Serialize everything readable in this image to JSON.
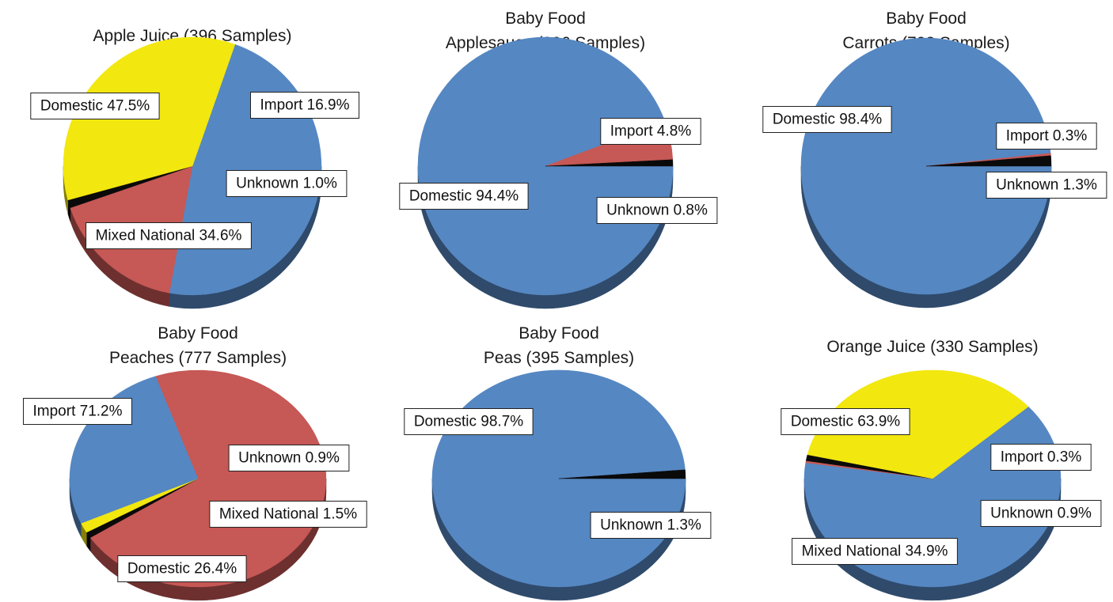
{
  "colors": {
    "Domestic": "#5587C2",
    "Import": "#C65855",
    "Mixed National": "#F2E70F",
    "Unknown": "#0a0a0a"
  },
  "chart_data": [
    {
      "type": "pie",
      "title": [
        "Apple Juice (396 Samples)"
      ],
      "slices": [
        {
          "name": "Domestic",
          "value": 47.5,
          "label": "Domestic 47.5%"
        },
        {
          "name": "Import",
          "value": 16.9,
          "label": "Import 16.9%"
        },
        {
          "name": "Unknown",
          "value": 1.0,
          "label": "Unknown 1.0%"
        },
        {
          "name": "Mixed National",
          "value": 34.6,
          "label": "Mixed National 34.6%"
        }
      ]
    },
    {
      "type": "pie",
      "title": [
        "Baby Food",
        "Applesauce (396 Samples)"
      ],
      "slices": [
        {
          "name": "Domestic",
          "value": 94.4,
          "label": "Domestic 94.4%"
        },
        {
          "name": "Import",
          "value": 4.8,
          "label": "Import 4.8%"
        },
        {
          "name": "Unknown",
          "value": 0.8,
          "label": "Unknown 0.8%"
        }
      ]
    },
    {
      "type": "pie",
      "title": [
        "Baby Food",
        "Carrots (792 Samples)"
      ],
      "slices": [
        {
          "name": "Domestic",
          "value": 98.4,
          "label": "Domestic 98.4%"
        },
        {
          "name": "Import",
          "value": 0.3,
          "label": "Import 0.3%"
        },
        {
          "name": "Unknown",
          "value": 1.3,
          "label": "Unknown 1.3%"
        }
      ]
    },
    {
      "type": "pie",
      "title": [
        "Baby Food",
        "Peaches (777 Samples)"
      ],
      "slices": [
        {
          "name": "Import",
          "value": 71.2,
          "label": "Import 71.2%"
        },
        {
          "name": "Unknown",
          "value": 0.9,
          "label": "Unknown 0.9%"
        },
        {
          "name": "Mixed National",
          "value": 1.5,
          "label": "Mixed National 1.5%"
        },
        {
          "name": "Domestic",
          "value": 26.4,
          "label": "Domestic 26.4%"
        }
      ]
    },
    {
      "type": "pie",
      "title": [
        "Baby Food",
        "Peas (395 Samples)"
      ],
      "slices": [
        {
          "name": "Domestic",
          "value": 98.7,
          "label": "Domestic 98.7%"
        },
        {
          "name": "Unknown",
          "value": 1.3,
          "label": "Unknown 1.3%"
        }
      ]
    },
    {
      "type": "pie",
      "title": [
        "Orange Juice (330 Samples)"
      ],
      "slices": [
        {
          "name": "Domestic",
          "value": 63.9,
          "label": "Domestic 63.9%"
        },
        {
          "name": "Import",
          "value": 0.3,
          "label": "Import 0.3%"
        },
        {
          "name": "Unknown",
          "value": 0.9,
          "label": "Unknown 0.9%"
        },
        {
          "name": "Mixed National",
          "value": 34.9,
          "label": "Mixed National 34.9%"
        }
      ]
    }
  ]
}
